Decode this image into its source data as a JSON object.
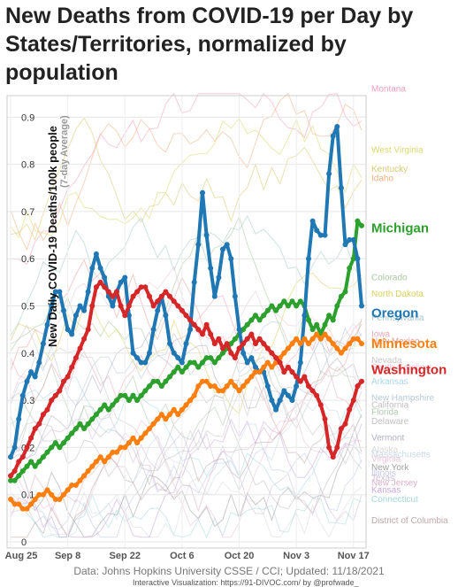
{
  "chart_data": {
    "type": "line",
    "title": "New Deaths from COVID-19 per Day by States/Territories, normalized by population",
    "ylabel": "New Daily COVID-19 Deaths/100k people",
    "ylabel_sub": "(7-day Average)",
    "xlabel": "",
    "x_ticks": [
      "Aug 25",
      "Sep 8",
      "Sep 22",
      "Oct 6",
      "Oct 20",
      "Nov 3",
      "Nov 17"
    ],
    "y_ticks": [
      "0",
      "0.1",
      "0.2",
      "0.3",
      "0.4",
      "0.5",
      "0.6",
      "0.7",
      "0.8",
      "0.9"
    ],
    "xlim_days": [
      0,
      86
    ],
    "ylim": [
      0,
      0.95
    ],
    "grid": true,
    "legend": "direct labels at right end of lines",
    "highlighted_series": [
      {
        "name": "Michigan",
        "color": "#2ca02c",
        "values": [
          0.13,
          0.13,
          0.14,
          0.15,
          0.16,
          0.17,
          0.16,
          0.17,
          0.18,
          0.19,
          0.2,
          0.21,
          0.2,
          0.21,
          0.22,
          0.23,
          0.24,
          0.25,
          0.24,
          0.25,
          0.26,
          0.27,
          0.28,
          0.29,
          0.28,
          0.29,
          0.3,
          0.31,
          0.31,
          0.3,
          0.31,
          0.3,
          0.31,
          0.32,
          0.33,
          0.34,
          0.34,
          0.33,
          0.34,
          0.35,
          0.36,
          0.37,
          0.36,
          0.37,
          0.38,
          0.38,
          0.37,
          0.38,
          0.39,
          0.39,
          0.38,
          0.39,
          0.4,
          0.41,
          0.42,
          0.43,
          0.44,
          0.45,
          0.46,
          0.47,
          0.48,
          0.47,
          0.48,
          0.49,
          0.5,
          0.49,
          0.5,
          0.51,
          0.5,
          0.51,
          0.5,
          0.51,
          0.5,
          0.47,
          0.45,
          0.46,
          0.44,
          0.46,
          0.48,
          0.47,
          0.5,
          0.52,
          0.53,
          0.58,
          0.6,
          0.68,
          0.67
        ]
      },
      {
        "name": "Oregon",
        "color": "#1f77b4",
        "values": [
          0.18,
          0.2,
          0.26,
          0.31,
          0.34,
          0.36,
          0.35,
          0.38,
          0.42,
          0.46,
          0.5,
          0.53,
          0.53,
          0.49,
          0.45,
          0.44,
          0.48,
          0.5,
          0.49,
          0.53,
          0.58,
          0.61,
          0.58,
          0.56,
          0.52,
          0.5,
          0.53,
          0.55,
          0.56,
          0.48,
          0.4,
          0.39,
          0.38,
          0.38,
          0.4,
          0.45,
          0.49,
          0.52,
          0.48,
          0.42,
          0.4,
          0.39,
          0.38,
          0.42,
          0.45,
          0.55,
          0.63,
          0.74,
          0.65,
          0.58,
          0.52,
          0.56,
          0.62,
          0.63,
          0.6,
          0.52,
          0.45,
          0.4,
          0.38,
          0.39,
          0.37,
          0.36,
          0.36,
          0.33,
          0.3,
          0.28,
          0.3,
          0.32,
          0.31,
          0.3,
          0.33,
          0.38,
          0.48,
          0.6,
          0.68,
          0.66,
          0.65,
          0.65,
          0.78,
          0.86,
          0.88,
          0.75,
          0.63,
          0.64,
          0.64,
          0.6,
          0.5
        ]
      },
      {
        "name": "Minnesota",
        "color": "#ff7f0e",
        "values": [
          0.09,
          0.08,
          0.08,
          0.07,
          0.07,
          0.08,
          0.09,
          0.1,
          0.1,
          0.11,
          0.1,
          0.09,
          0.09,
          0.1,
          0.11,
          0.12,
          0.12,
          0.13,
          0.14,
          0.15,
          0.16,
          0.17,
          0.18,
          0.17,
          0.18,
          0.19,
          0.19,
          0.2,
          0.2,
          0.21,
          0.22,
          0.21,
          0.22,
          0.23,
          0.24,
          0.25,
          0.26,
          0.27,
          0.26,
          0.27,
          0.28,
          0.27,
          0.28,
          0.29,
          0.3,
          0.31,
          0.33,
          0.34,
          0.34,
          0.33,
          0.33,
          0.32,
          0.32,
          0.33,
          0.34,
          0.33,
          0.32,
          0.33,
          0.34,
          0.35,
          0.36,
          0.36,
          0.37,
          0.38,
          0.37,
          0.38,
          0.39,
          0.4,
          0.41,
          0.42,
          0.43,
          0.42,
          0.43,
          0.42,
          0.43,
          0.44,
          0.43,
          0.44,
          0.43,
          0.42,
          0.41,
          0.4,
          0.41,
          0.42,
          0.43,
          0.43,
          0.42
        ]
      },
      {
        "name": "Washington",
        "color": "#d62728",
        "values": [
          0.14,
          0.15,
          0.17,
          0.18,
          0.2,
          0.22,
          0.24,
          0.25,
          0.27,
          0.28,
          0.3,
          0.31,
          0.32,
          0.34,
          0.35,
          0.37,
          0.39,
          0.41,
          0.43,
          0.45,
          0.5,
          0.54,
          0.55,
          0.54,
          0.53,
          0.52,
          0.53,
          0.5,
          0.48,
          0.5,
          0.52,
          0.53,
          0.54,
          0.54,
          0.52,
          0.5,
          0.51,
          0.52,
          0.53,
          0.52,
          0.51,
          0.5,
          0.49,
          0.48,
          0.47,
          0.46,
          0.45,
          0.44,
          0.46,
          0.44,
          0.42,
          0.43,
          0.41,
          0.42,
          0.4,
          0.39,
          0.41,
          0.42,
          0.43,
          0.44,
          0.42,
          0.43,
          0.42,
          0.41,
          0.4,
          0.39,
          0.38,
          0.36,
          0.37,
          0.36,
          0.35,
          0.34,
          0.35,
          0.33,
          0.32,
          0.31,
          0.29,
          0.26,
          0.2,
          0.18,
          0.2,
          0.24,
          0.25,
          0.28,
          0.3,
          0.33,
          0.34
        ]
      }
    ],
    "background_labels": [
      {
        "name": "Montana",
        "color": "#f2a0c0",
        "y": 0.96
      },
      {
        "name": "West Virginia",
        "color": "#d8d870",
        "y": 0.83
      },
      {
        "name": "Kentucky",
        "color": "#d8c870",
        "y": 0.79
      },
      {
        "name": "Idaho",
        "color": "#f0b080",
        "y": 0.77
      },
      {
        "name": "Colorado",
        "color": "#a8c8a0",
        "y": 0.56
      },
      {
        "name": "North Dakota",
        "color": "#d8d060",
        "y": 0.525
      },
      {
        "name": "Pennsylvania",
        "color": "#a8c8c8",
        "y": 0.475
      },
      {
        "name": "Iowa",
        "color": "#f0a8b8",
        "y": 0.44
      },
      {
        "name": "New Mexico",
        "color": "#e8a0a0",
        "y": 0.425
      },
      {
        "name": "Nevada",
        "color": "#c8c8c8",
        "y": 0.385
      },
      {
        "name": "South Carolina",
        "color": "#e8c8d8",
        "y": 0.37
      },
      {
        "name": "Arkansas",
        "color": "#a8d8e8",
        "y": 0.34
      },
      {
        "name": "New Hampshire",
        "color": "#b8c8d8",
        "y": 0.305
      },
      {
        "name": "California",
        "color": "#c0c0c0",
        "y": 0.29
      },
      {
        "name": "Florida",
        "color": "#b0c8b0",
        "y": 0.275
      },
      {
        "name": "Delaware",
        "color": "#c0c0c0",
        "y": 0.255
      },
      {
        "name": "Vermont",
        "color": "#b0b0c8",
        "y": 0.22
      },
      {
        "name": "Alaska",
        "color": "#d8d8d8",
        "y": 0.195
      },
      {
        "name": "Massachusetts",
        "color": "#c8d8e8",
        "y": 0.185
      },
      {
        "name": "Virginia",
        "color": "#f0c0d8",
        "y": 0.175
      },
      {
        "name": "New York",
        "color": "#a0a0a0",
        "y": 0.158
      },
      {
        "name": "Illinois",
        "color": "#c0c8e8",
        "y": 0.145
      },
      {
        "name": "Texas",
        "color": "#d0c0d8",
        "y": 0.135
      },
      {
        "name": "New Jersey",
        "color": "#e0b0c8",
        "y": 0.125
      },
      {
        "name": "Kansas",
        "color": "#c8a8e0",
        "y": 0.11
      },
      {
        "name": "Connecticut",
        "color": "#a8d8d8",
        "y": 0.09
      },
      {
        "name": "District of Columbia",
        "color": "#c0a8a8",
        "y": 0.045
      }
    ]
  },
  "source": "Data: Johns Hopkins University CSSE / CCI; Updated: 11/18/2021",
  "credit": "Interactive Visualization: https://91-DIVOC.com/ by @profwade_"
}
